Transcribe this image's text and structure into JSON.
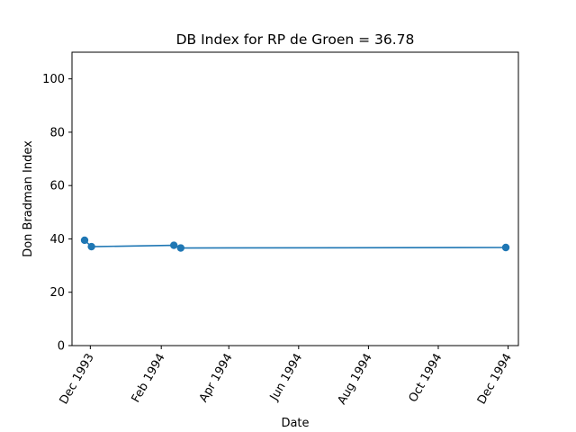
{
  "chart_data": {
    "type": "line",
    "title": "DB Index for RP de Groen = 36.78",
    "xlabel": "Date",
    "ylabel": "Don Bradman Index",
    "ylim": [
      0,
      110
    ],
    "xlim": [
      "1993-11-15",
      "1994-12-10"
    ],
    "y_ticks": [
      0,
      20,
      40,
      60,
      80,
      100
    ],
    "x_ticks": [
      {
        "date": "1993-12-01",
        "label": "Dec 1993"
      },
      {
        "date": "1994-02-01",
        "label": "Feb 1994"
      },
      {
        "date": "1994-04-01",
        "label": "Apr 1994"
      },
      {
        "date": "1994-06-01",
        "label": "Jun 1994"
      },
      {
        "date": "1994-08-01",
        "label": "Aug 1994"
      },
      {
        "date": "1994-10-01",
        "label": "Oct 1994"
      },
      {
        "date": "1994-12-01",
        "label": "Dec 1994"
      }
    ],
    "series": [
      {
        "color": "#1f77b4",
        "points": [
          {
            "x": "1993-11-26",
            "y": 39.5
          },
          {
            "x": "1993-12-02",
            "y": 37.1
          },
          {
            "x": "1994-02-12",
            "y": 37.6
          },
          {
            "x": "1994-02-18",
            "y": 36.6
          },
          {
            "x": "1994-11-29",
            "y": 36.78
          }
        ]
      }
    ],
    "grid": false,
    "legend": "none"
  }
}
